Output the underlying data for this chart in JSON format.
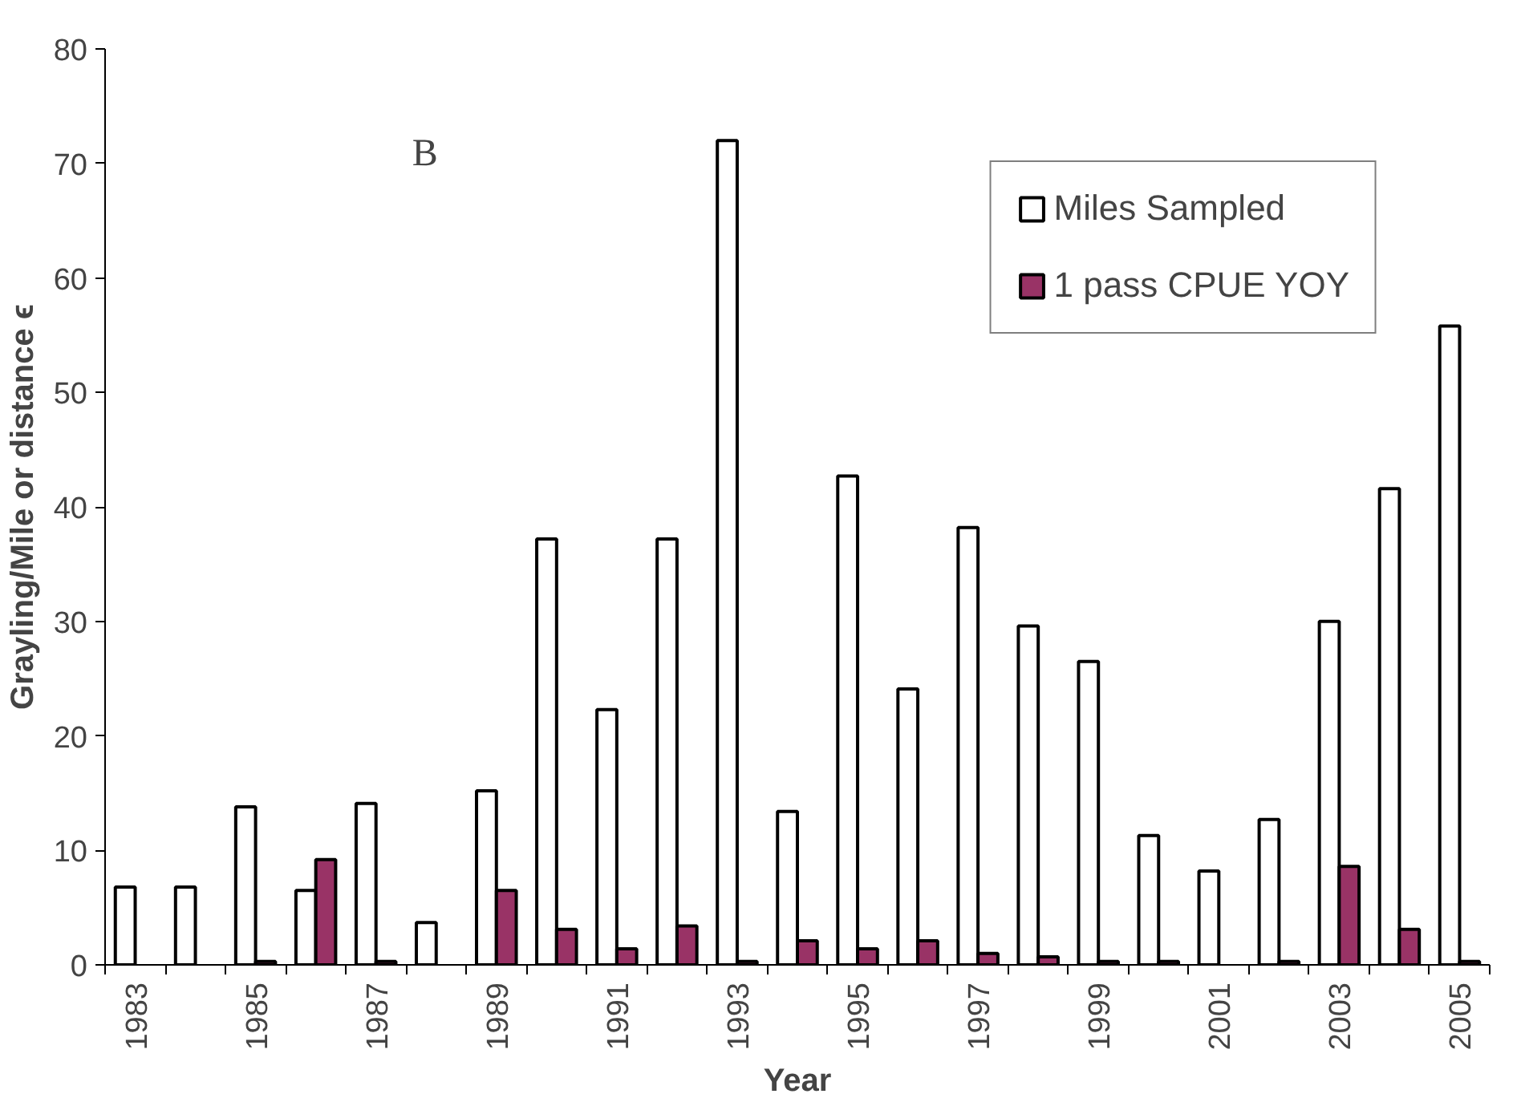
{
  "chart_data": {
    "type": "bar",
    "xlabel": "Year",
    "ylabel": "Grayling/Mile or distance ϵ",
    "annotations": [
      "B"
    ],
    "categories": [
      "1983",
      null,
      "1985",
      null,
      "1987",
      null,
      "1989",
      null,
      "1991",
      null,
      "1993",
      null,
      "1995",
      null,
      "1997",
      null,
      "1999",
      null,
      "2001",
      null,
      "2003",
      null,
      "2005"
    ],
    "series": [
      {
        "name": "Miles Sampled",
        "color": "#ffffff",
        "values": [
          6.8,
          6.8,
          13.8,
          6.5,
          14.1,
          3.7,
          15.2,
          37.2,
          22.3,
          37.2,
          72.0,
          13.4,
          42.7,
          24.1,
          38.2,
          29.6,
          26.5,
          11.3,
          8.2,
          12.7,
          30.0,
          41.6,
          55.8
        ]
      },
      {
        "name": "1 pass CPUE YOY",
        "color": "#993366",
        "values": [
          null,
          null,
          0.3,
          9.2,
          0.3,
          null,
          6.5,
          3.1,
          1.4,
          3.4,
          0.3,
          2.1,
          1.4,
          2.1,
          1.0,
          0.7,
          0.3,
          0.3,
          null,
          0.3,
          8.6,
          3.1,
          0.3
        ]
      }
    ],
    "ylim": [
      0,
      80
    ],
    "yticks": [
      0,
      10,
      20,
      30,
      40,
      50,
      60,
      70,
      80
    ],
    "grid": false,
    "legend": "top right"
  }
}
